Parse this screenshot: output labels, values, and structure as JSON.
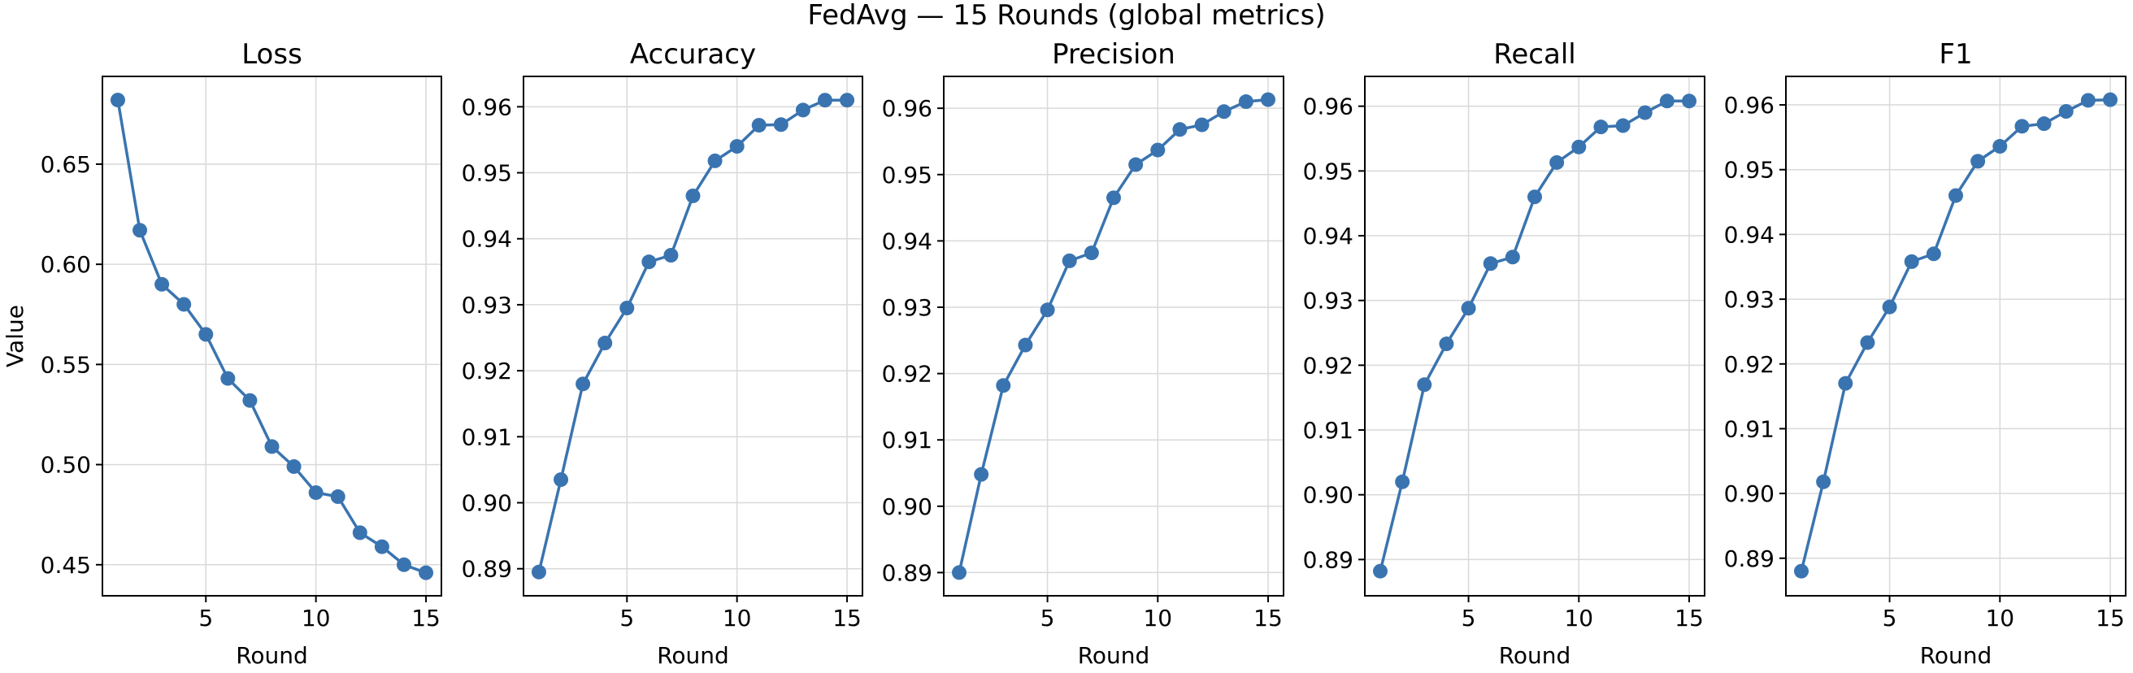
{
  "figure": {
    "title": "FedAvg — 15 Rounds (global metrics)",
    "line_color": "#3a74b0",
    "grid": true
  },
  "chart_data": [
    {
      "type": "line",
      "title": "Loss",
      "xlabel": "Round",
      "ylabel": "Value",
      "x": [
        1,
        2,
        3,
        4,
        5,
        6,
        7,
        8,
        9,
        10,
        11,
        12,
        13,
        14,
        15
      ],
      "y": [
        0.682,
        0.617,
        0.59,
        0.58,
        0.565,
        0.543,
        0.532,
        0.509,
        0.499,
        0.486,
        0.484,
        0.466,
        0.459,
        0.45,
        0.446
      ],
      "xlim": [
        0.3,
        15.7
      ],
      "ylim": [
        0.4345,
        0.6938
      ],
      "xticks": [
        5,
        10,
        15
      ],
      "yticks": [
        0.45,
        0.5,
        0.55,
        0.6,
        0.65
      ],
      "ytick_labels": [
        "0.45",
        "0.50",
        "0.55",
        "0.60",
        "0.65"
      ]
    },
    {
      "type": "line",
      "title": "Accuracy",
      "xlabel": "Round",
      "ylabel": "",
      "x": [
        1,
        2,
        3,
        4,
        5,
        6,
        7,
        8,
        9,
        10,
        11,
        12,
        13,
        14,
        15
      ],
      "y": [
        0.8895,
        0.9035,
        0.918,
        0.9242,
        0.9295,
        0.9365,
        0.9375,
        0.9465,
        0.9518,
        0.954,
        0.9572,
        0.9573,
        0.9595,
        0.961,
        0.961
      ],
      "xlim": [
        0.3,
        15.7
      ],
      "ylim": [
        0.8859,
        0.9646
      ],
      "xticks": [
        5,
        10,
        15
      ],
      "yticks": [
        0.89,
        0.9,
        0.91,
        0.92,
        0.93,
        0.94,
        0.95,
        0.96
      ],
      "ytick_labels": [
        "0.89",
        "0.90",
        "0.91",
        "0.92",
        "0.93",
        "0.94",
        "0.95",
        "0.96"
      ]
    },
    {
      "type": "line",
      "title": "Precision",
      "xlabel": "Round",
      "ylabel": "",
      "x": [
        1,
        2,
        3,
        4,
        5,
        6,
        7,
        8,
        9,
        10,
        11,
        12,
        13,
        14,
        15
      ],
      "y": [
        0.89,
        0.9048,
        0.9182,
        0.9243,
        0.9296,
        0.937,
        0.9382,
        0.9465,
        0.9515,
        0.9537,
        0.9568,
        0.9575,
        0.9595,
        0.961,
        0.9613
      ],
      "xlim": [
        0.3,
        15.7
      ],
      "ylim": [
        0.8865,
        0.9648
      ],
      "xticks": [
        5,
        10,
        15
      ],
      "yticks": [
        0.89,
        0.9,
        0.91,
        0.92,
        0.93,
        0.94,
        0.95,
        0.96
      ],
      "ytick_labels": [
        "0.89",
        "0.90",
        "0.91",
        "0.92",
        "0.93",
        "0.94",
        "0.95",
        "0.96"
      ]
    },
    {
      "type": "line",
      "title": "Recall",
      "xlabel": "Round",
      "ylabel": "",
      "x": [
        1,
        2,
        3,
        4,
        5,
        6,
        7,
        8,
        9,
        10,
        11,
        12,
        13,
        14,
        15
      ],
      "y": [
        0.8882,
        0.902,
        0.917,
        0.9233,
        0.9288,
        0.9357,
        0.9367,
        0.946,
        0.9513,
        0.9537,
        0.9568,
        0.957,
        0.959,
        0.9608,
        0.9608
      ],
      "xlim": [
        0.3,
        15.7
      ],
      "ylim": [
        0.8844,
        0.9646
      ],
      "xticks": [
        5,
        10,
        15
      ],
      "yticks": [
        0.89,
        0.9,
        0.91,
        0.92,
        0.93,
        0.94,
        0.95,
        0.96
      ],
      "ytick_labels": [
        "0.89",
        "0.90",
        "0.91",
        "0.92",
        "0.93",
        "0.94",
        "0.95",
        "0.96"
      ]
    },
    {
      "type": "line",
      "title": "F1",
      "xlabel": "Round",
      "ylabel": "",
      "x": [
        1,
        2,
        3,
        4,
        5,
        6,
        7,
        8,
        9,
        10,
        11,
        12,
        13,
        14,
        15
      ],
      "y": [
        0.888,
        0.9018,
        0.917,
        0.9233,
        0.9288,
        0.9358,
        0.937,
        0.946,
        0.9513,
        0.9536,
        0.9567,
        0.9571,
        0.959,
        0.9607,
        0.9608
      ],
      "xlim": [
        0.3,
        15.7
      ],
      "ylim": [
        0.8842,
        0.9644
      ],
      "xticks": [
        5,
        10,
        15
      ],
      "yticks": [
        0.89,
        0.9,
        0.91,
        0.92,
        0.93,
        0.94,
        0.95,
        0.96
      ],
      "ytick_labels": [
        "0.89",
        "0.90",
        "0.91",
        "0.92",
        "0.93",
        "0.94",
        "0.95",
        "0.96"
      ]
    }
  ]
}
